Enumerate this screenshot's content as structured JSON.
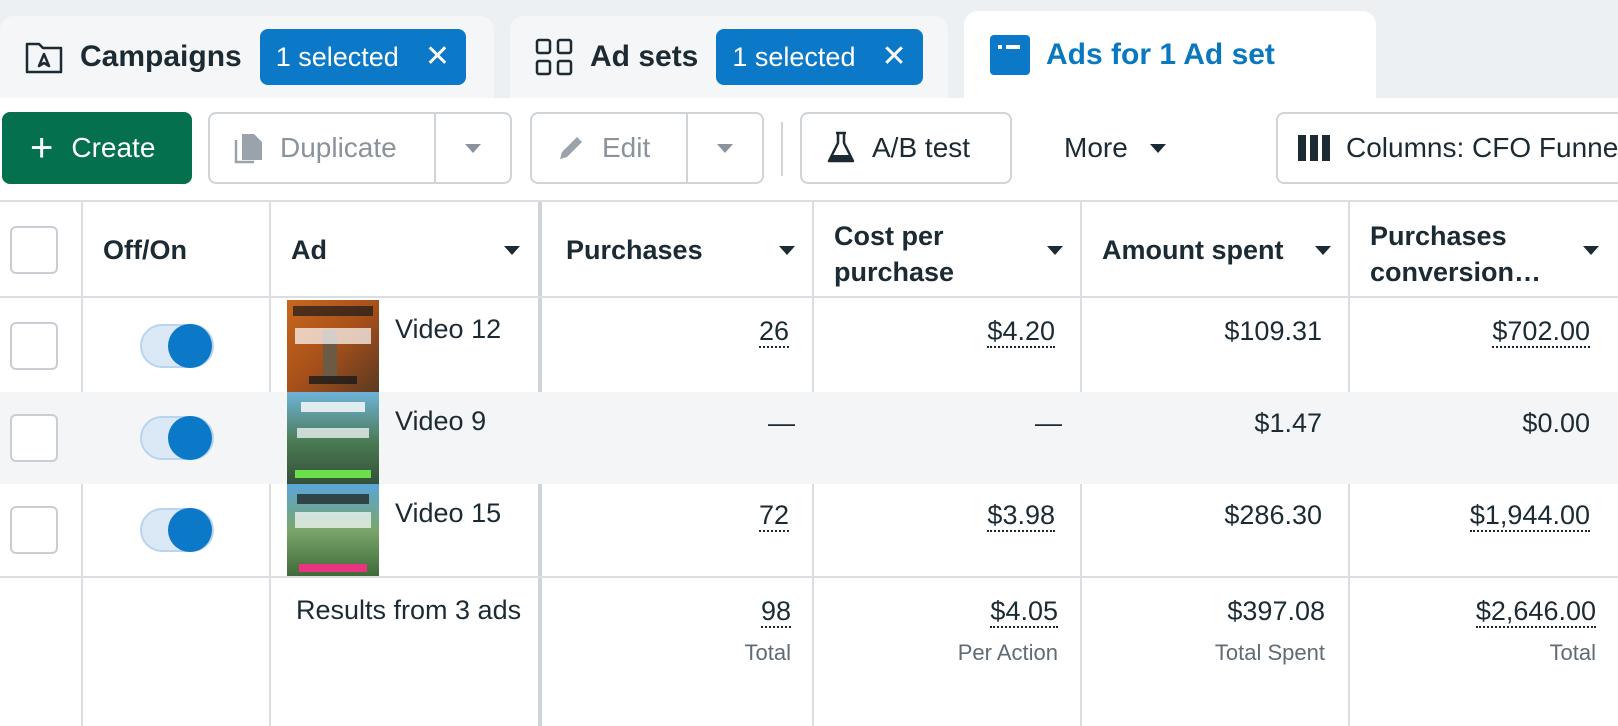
{
  "tabs": [
    {
      "label": "Campaigns",
      "badge": "1 selected",
      "icon": "campaign-folder-icon"
    },
    {
      "label": "Ad sets",
      "badge": "1 selected",
      "icon": "grid-icon"
    },
    {
      "label": "Ads for 1 Ad set",
      "icon": "ad-card-icon",
      "active": true
    }
  ],
  "toolbar": {
    "create": "Create",
    "duplicate": "Duplicate",
    "edit": "Edit",
    "ab_test": "A/B test",
    "more": "More",
    "columns": "Columns: CFO Funne"
  },
  "table": {
    "headers": {
      "toggle": "Off/On",
      "ad": "Ad",
      "purchases": "Purchases",
      "cost_line1": "Cost per",
      "cost_line2": "purchase",
      "amount": "Amount spent",
      "conv_line1": "Purchases",
      "conv_line2": "conversion…"
    },
    "rows": [
      {
        "name": "Video 12",
        "purchases": "26",
        "cost": "$4.20",
        "amount": "$109.31",
        "conversion": "$702.00",
        "on": true
      },
      {
        "name": "Video 9",
        "purchases": "—",
        "cost": "—",
        "amount": "$1.47",
        "conversion": "$0.00",
        "on": true
      },
      {
        "name": "Video 15",
        "purchases": "72",
        "cost": "$3.98",
        "amount": "$286.30",
        "conversion": "$1,944.00",
        "on": true
      }
    ],
    "summary": {
      "label": "Results from 3 ads",
      "purchases": "98",
      "purchases_sub": "Total",
      "cost": "$4.05",
      "cost_sub": "Per Action",
      "amount": "$397.08",
      "amount_sub": "Total Spent",
      "conversion": "$2,646.00",
      "conversion_sub": "Total"
    }
  },
  "colors": {
    "accent": "#0b78c8",
    "create": "#05704d",
    "text": "#1c2b33"
  }
}
